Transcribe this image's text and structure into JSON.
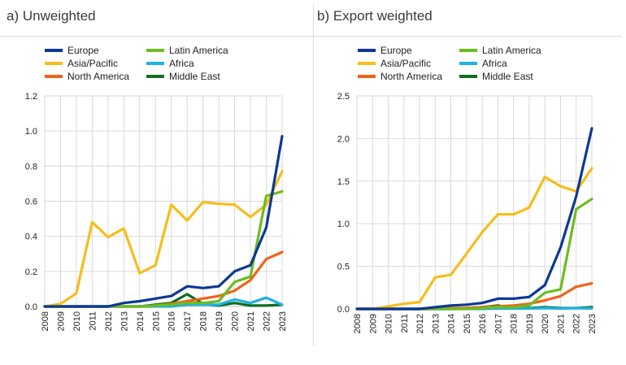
{
  "colors": {
    "Europe": "#0c3896",
    "Asia/Pacific": "#f6bd1b",
    "North America": "#f2611a",
    "Latin America": "#6cbd1f",
    "Africa": "#1fb1e3",
    "Middle East": "#0f6e1f"
  },
  "legend_order": [
    "Europe",
    "Latin America",
    "Asia/Pacific",
    "Africa",
    "North America",
    "Middle East"
  ],
  "chart_data": [
    {
      "type": "line",
      "title": "a) Unweighted",
      "x": [
        "2008",
        "2009",
        "2010",
        "2011",
        "2012",
        "2013",
        "2014",
        "2015",
        "2016",
        "2017",
        "2018",
        "2019",
        "2020",
        "2021",
        "2022",
        "2023"
      ],
      "ylim": [
        0,
        1.2
      ],
      "yticks": [
        "0.0",
        "0.2",
        "0.4",
        "0.6",
        "0.8",
        "1.0",
        "1.2"
      ],
      "grid": true,
      "legend_position": "top",
      "series": [
        {
          "name": "Europe",
          "values": [
            0,
            0,
            0,
            0,
            0,
            0.02,
            0.03,
            0.045,
            0.06,
            0.115,
            0.105,
            0.115,
            0.2,
            0.235,
            0.45,
            0.97
          ]
        },
        {
          "name": "Asia/Pacific",
          "values": [
            0,
            0.015,
            0.075,
            0.48,
            0.395,
            0.445,
            0.19,
            0.235,
            0.58,
            0.49,
            0.595,
            0.585,
            0.58,
            0.51,
            0.58,
            0.77
          ]
        },
        {
          "name": "North America",
          "values": [
            0,
            0,
            0,
            0,
            0,
            0,
            0,
            0.005,
            0.015,
            0.03,
            0.045,
            0.06,
            0.09,
            0.15,
            0.27,
            0.31
          ]
        },
        {
          "name": "Latin America",
          "values": [
            0,
            0,
            0,
            0,
            0,
            0,
            0,
            0.005,
            0.01,
            0.02,
            0.02,
            0.03,
            0.14,
            0.17,
            0.63,
            0.655
          ]
        },
        {
          "name": "Africa",
          "values": [
            0,
            0,
            0,
            0,
            0,
            0,
            0,
            0,
            0,
            0.01,
            0.01,
            0.01,
            0.04,
            0.02,
            0.05,
            0.01
          ]
        },
        {
          "name": "Middle East",
          "values": [
            0,
            0,
            0,
            0,
            0,
            0,
            0,
            0.01,
            0.02,
            0.07,
            0.015,
            0.005,
            0.02,
            0.005,
            0.005,
            0.01
          ]
        }
      ]
    },
    {
      "type": "line",
      "title": "b) Export weighted",
      "x": [
        "2008",
        "2009",
        "2010",
        "2011",
        "2012",
        "2013",
        "2014",
        "2015",
        "2016",
        "2017",
        "2018",
        "2019",
        "2020",
        "2021",
        "2022",
        "2023"
      ],
      "ylim": [
        0,
        2.5
      ],
      "yticks": [
        "0.0",
        "0.5",
        "1.0",
        "1.5",
        "2.0",
        "2.5"
      ],
      "grid": true,
      "legend_position": "top",
      "series": [
        {
          "name": "Europe",
          "values": [
            0,
            0,
            0,
            0,
            0,
            0.02,
            0.04,
            0.05,
            0.07,
            0.12,
            0.12,
            0.14,
            0.28,
            0.72,
            1.32,
            2.12
          ]
        },
        {
          "name": "Asia/Pacific",
          "values": [
            0,
            0,
            0.03,
            0.06,
            0.08,
            0.37,
            0.4,
            0.65,
            0.9,
            1.11,
            1.11,
            1.19,
            1.55,
            1.44,
            1.38,
            1.65
          ]
        },
        {
          "name": "North America",
          "values": [
            0,
            0,
            0,
            0,
            0,
            0,
            0.01,
            0.01,
            0.02,
            0.03,
            0.04,
            0.06,
            0.1,
            0.15,
            0.26,
            0.3
          ]
        },
        {
          "name": "Latin America",
          "values": [
            0,
            0,
            0,
            0,
            0,
            0,
            0,
            0,
            0.01,
            0.02,
            0.02,
            0.04,
            0.19,
            0.23,
            1.17,
            1.29
          ]
        },
        {
          "name": "Africa",
          "values": [
            0,
            0,
            0,
            0,
            0,
            0,
            0,
            0,
            0,
            0.005,
            0.005,
            0.005,
            0.01,
            0.005,
            0.01,
            0.005
          ]
        },
        {
          "name": "Middle East",
          "values": [
            0,
            0,
            0,
            0,
            0,
            0,
            0,
            0.01,
            0.02,
            0.04,
            0.01,
            0.01,
            0.02,
            0.01,
            0.01,
            0.02
          ]
        }
      ]
    }
  ]
}
